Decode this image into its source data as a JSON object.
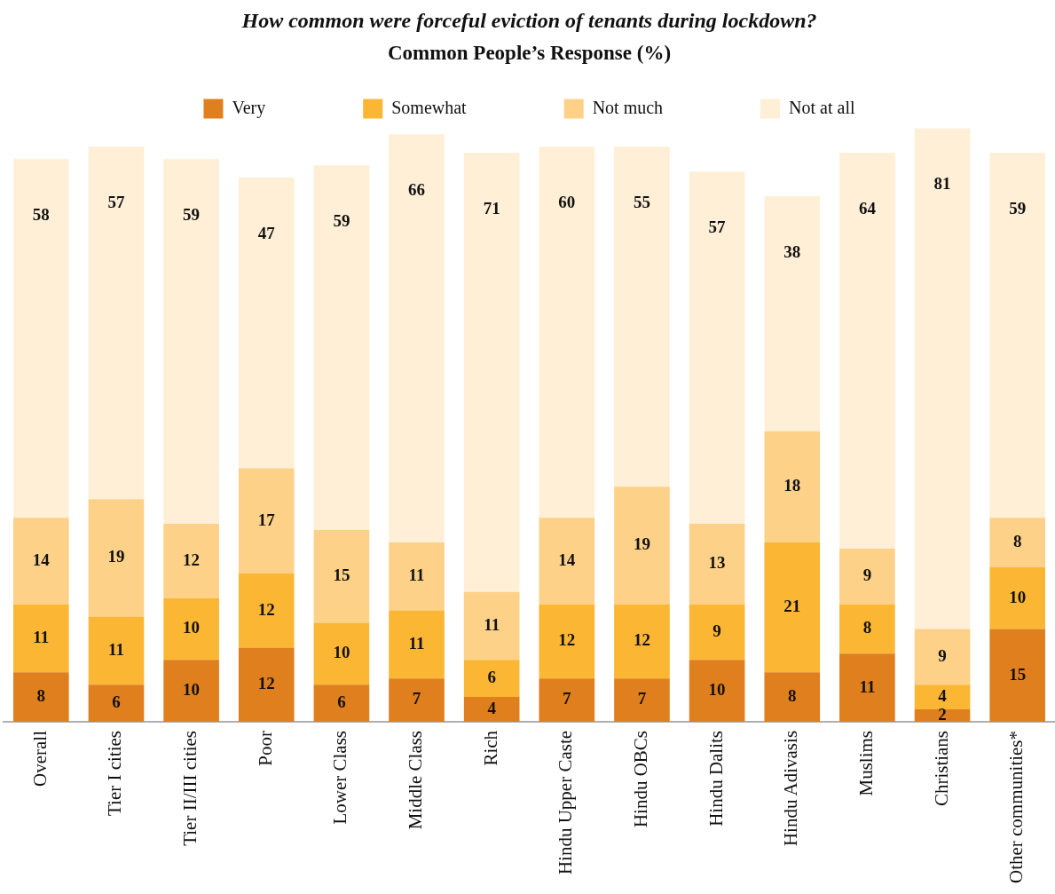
{
  "chart_data": {
    "type": "bar",
    "stacked": true,
    "title": "How common were forceful eviction of tenants during lockdown?",
    "subtitle": "Common People’s Response (%)",
    "categories": [
      "Overall",
      "Tier I cities",
      "Tier II/III cities",
      "Poor",
      "Lower Class",
      "Middle Class",
      "Rich",
      "Hindu Upper Caste",
      "Hindu OBCs",
      "Hindu Dalits",
      "Hindu Adivasis",
      "Muslims",
      "Christians",
      "Other communities*"
    ],
    "series": [
      {
        "name": "Very",
        "color": "#e07f1d",
        "values": [
          8,
          6,
          10,
          12,
          6,
          7,
          4,
          7,
          7,
          10,
          8,
          11,
          2,
          15
        ]
      },
      {
        "name": "Somewhat",
        "color": "#fbb634",
        "values": [
          11,
          11,
          10,
          12,
          10,
          11,
          6,
          12,
          12,
          9,
          21,
          8,
          4,
          10
        ]
      },
      {
        "name": "Not much",
        "color": "#fdd188",
        "values": [
          14,
          19,
          12,
          17,
          15,
          11,
          11,
          14,
          19,
          13,
          18,
          9,
          9,
          8
        ]
      },
      {
        "name": "Not at all",
        "color": "#feefd6",
        "values": [
          58,
          57,
          59,
          47,
          59,
          66,
          71,
          60,
          55,
          57,
          38,
          64,
          81,
          59
        ]
      }
    ],
    "ylim": [
      0,
      96
    ],
    "tick_labels": "x",
    "legend": "top",
    "data_labels": true
  }
}
